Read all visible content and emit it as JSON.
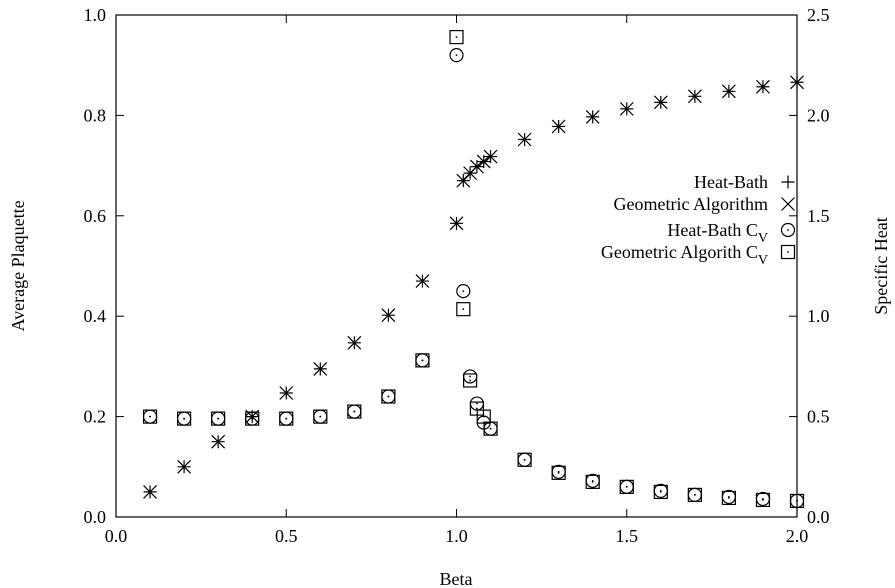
{
  "chart_data": {
    "type": "scatter",
    "xlabel": "Beta",
    "ylabel": "Average Plaquette",
    "y2label": "Specific Heat",
    "xlim": [
      0.0,
      2.0
    ],
    "ylim": [
      0.0,
      1.0
    ],
    "y2lim": [
      0.0,
      2.5
    ],
    "xticks": [
      "0.0",
      "0.5",
      "1.0",
      "1.5",
      "2.0"
    ],
    "yticks": [
      "0.0",
      "0.2",
      "0.4",
      "0.6",
      "0.8",
      "1.0"
    ],
    "y2ticks": [
      "0.0",
      "0.5",
      "1.0",
      "1.5",
      "2.0",
      "2.5"
    ],
    "grid": false,
    "legend_position": "right",
    "series": [
      {
        "name": "Heat-Bath",
        "marker": "plus",
        "axis": "left",
        "x": [
          0.1,
          0.2,
          0.3,
          0.4,
          0.5,
          0.6,
          0.7,
          0.8,
          0.9,
          1.0,
          1.02,
          1.04,
          1.06,
          1.08,
          1.1,
          1.2,
          1.3,
          1.4,
          1.5,
          1.6,
          1.7,
          1.8,
          1.9,
          2.0
        ],
        "y": [
          0.05,
          0.1,
          0.15,
          0.2,
          0.247,
          0.295,
          0.347,
          0.402,
          0.47,
          0.585,
          0.67,
          0.685,
          0.698,
          0.708,
          0.718,
          0.752,
          0.778,
          0.797,
          0.813,
          0.826,
          0.838,
          0.848,
          0.857,
          0.866
        ]
      },
      {
        "name": "Geometric Algorithm",
        "marker": "cross",
        "axis": "left",
        "x": [
          0.1,
          0.2,
          0.3,
          0.4,
          0.5,
          0.6,
          0.7,
          0.8,
          0.9,
          1.0,
          1.02,
          1.04,
          1.06,
          1.08,
          1.1,
          1.2,
          1.3,
          1.4,
          1.5,
          1.6,
          1.7,
          1.8,
          1.9,
          2.0
        ],
        "y": [
          0.05,
          0.1,
          0.15,
          0.2,
          0.247,
          0.295,
          0.347,
          0.402,
          0.47,
          0.585,
          0.67,
          0.685,
          0.698,
          0.708,
          0.718,
          0.752,
          0.778,
          0.797,
          0.813,
          0.826,
          0.838,
          0.848,
          0.857,
          0.866
        ]
      },
      {
        "name": "Heat-Bath C",
        "subscript": "V",
        "marker": "circle",
        "axis": "right",
        "x": [
          0.1,
          0.2,
          0.3,
          0.4,
          0.5,
          0.6,
          0.7,
          0.8,
          0.9,
          1.0,
          1.02,
          1.04,
          1.06,
          1.08,
          1.1,
          1.2,
          1.3,
          1.4,
          1.5,
          1.6,
          1.7,
          1.8,
          1.9,
          2.0
        ],
        "y": [
          0.5,
          0.49,
          0.49,
          0.49,
          0.49,
          0.5,
          0.525,
          0.6,
          0.78,
          2.3,
          1.125,
          0.7,
          0.565,
          0.47,
          0.44,
          0.285,
          0.225,
          0.18,
          0.15,
          0.13,
          0.11,
          0.1,
          0.09,
          0.08
        ]
      },
      {
        "name": "Geometric Algorith C",
        "subscript": "V",
        "marker": "square",
        "axis": "right",
        "x": [
          0.1,
          0.2,
          0.3,
          0.4,
          0.5,
          0.6,
          0.7,
          0.8,
          0.9,
          1.0,
          1.02,
          1.04,
          1.06,
          1.08,
          1.1,
          1.2,
          1.3,
          1.4,
          1.5,
          1.6,
          1.7,
          1.8,
          1.9,
          2.0
        ],
        "y": [
          0.5,
          0.49,
          0.49,
          0.49,
          0.49,
          0.5,
          0.525,
          0.6,
          0.78,
          2.39,
          1.035,
          0.68,
          0.54,
          0.5,
          0.44,
          0.285,
          0.22,
          0.175,
          0.15,
          0.125,
          0.11,
          0.095,
          0.085,
          0.08
        ]
      }
    ]
  }
}
